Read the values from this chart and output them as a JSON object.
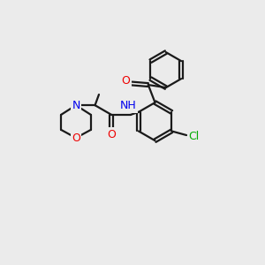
{
  "background_color": "#ebebeb",
  "bond_color": "#1a1a1a",
  "atom_colors": {
    "N": "#0000ee",
    "O": "#ee0000",
    "Cl": "#00aa00",
    "H": "#666666",
    "C": "#1a1a1a"
  },
  "figsize": [
    3.0,
    3.0
  ],
  "dpi": 100
}
